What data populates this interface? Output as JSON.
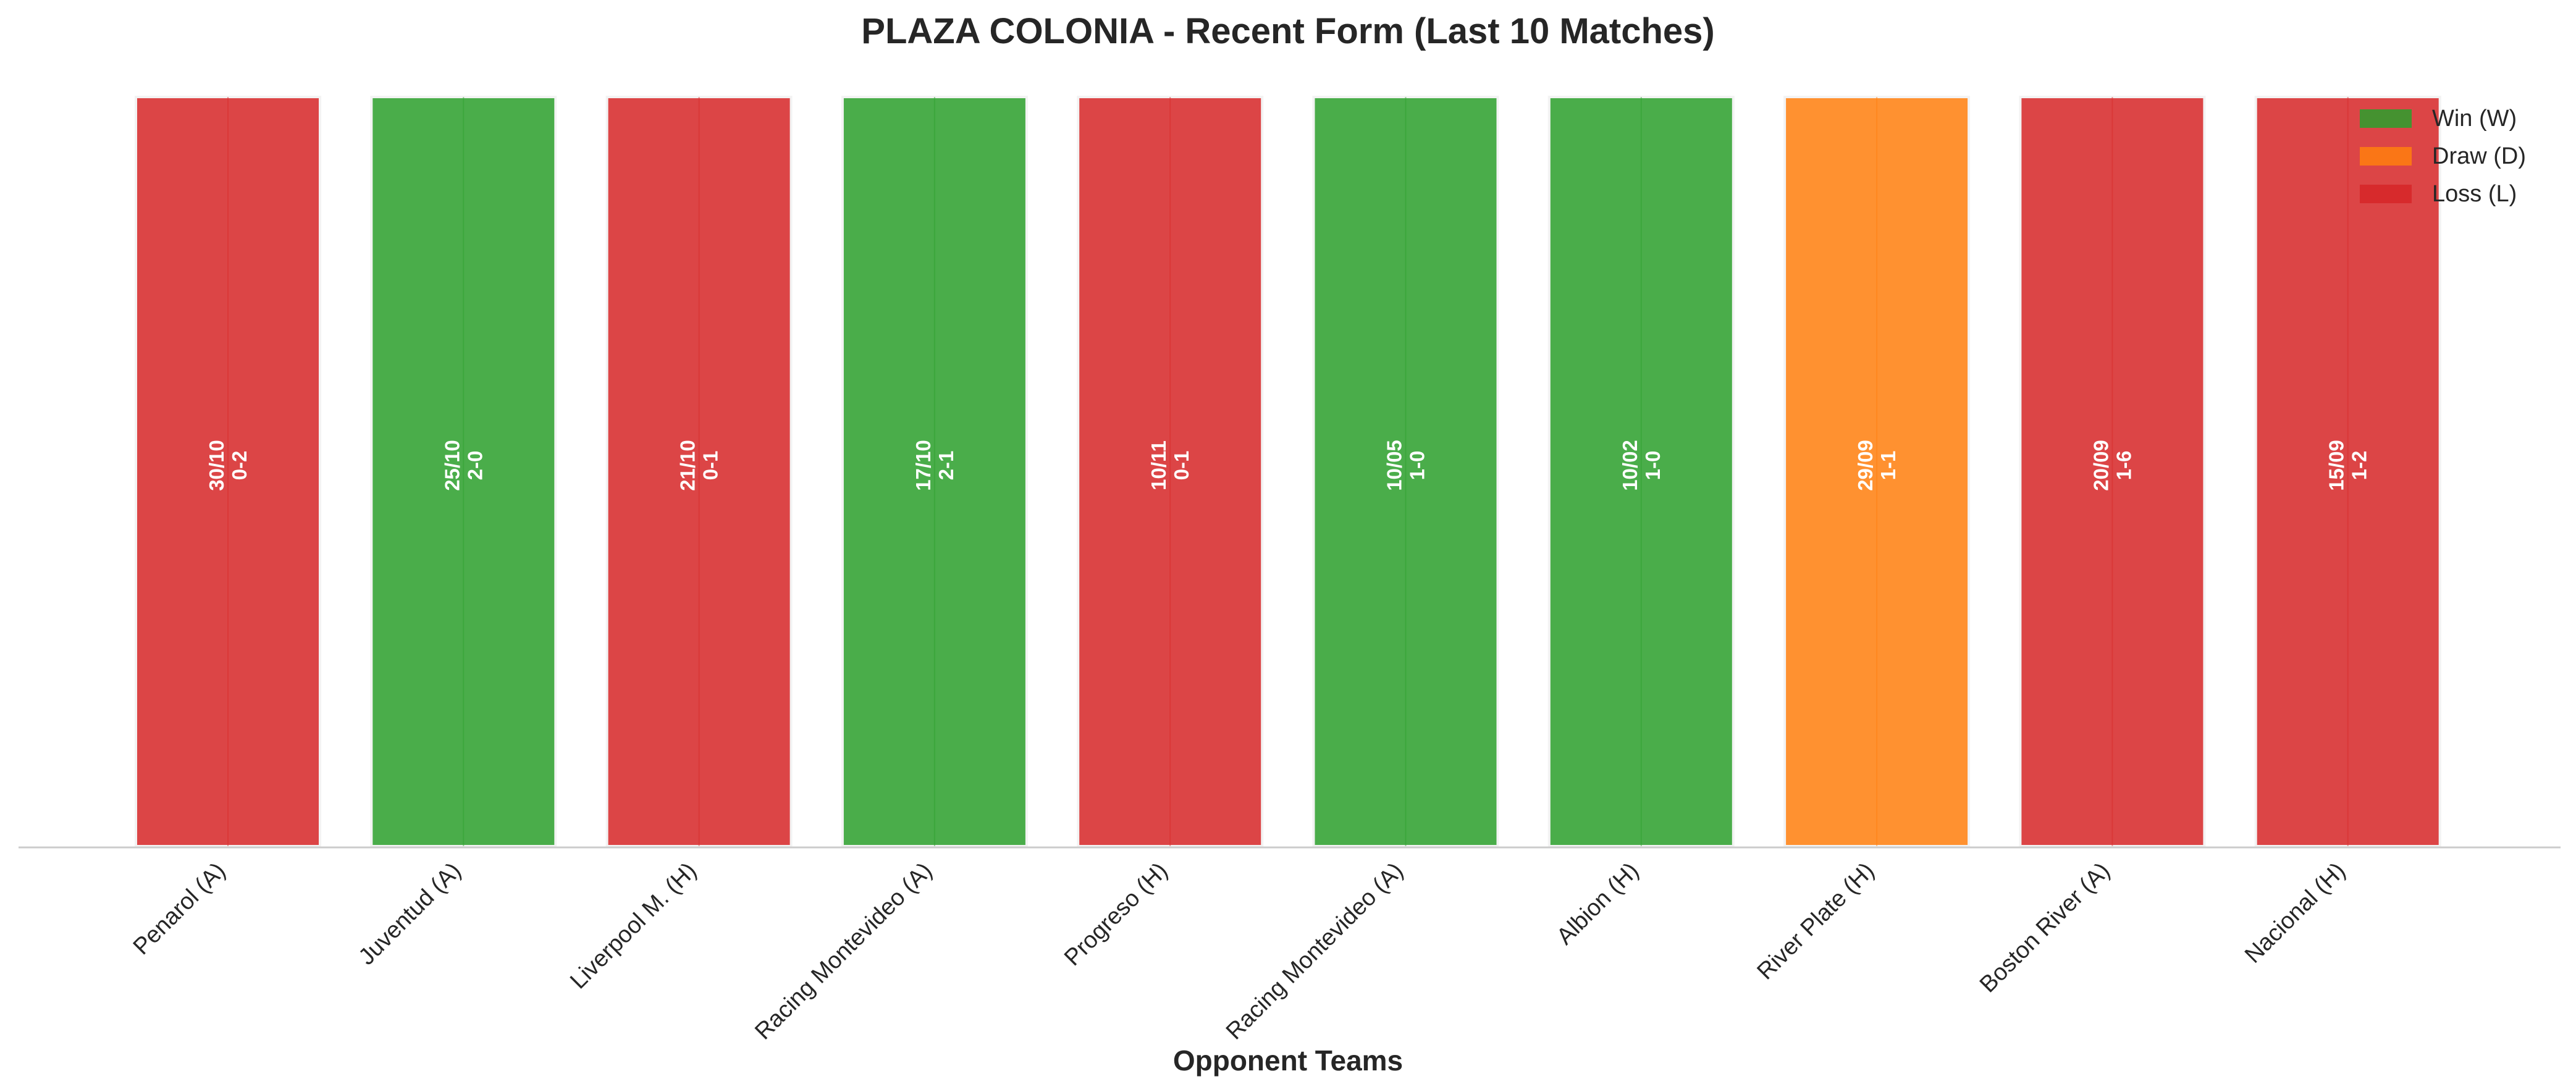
{
  "chart_data": {
    "type": "bar",
    "title": "PLAZA COLONIA - Recent Form (Last 10 Matches)",
    "xlabel": "Opponent Teams",
    "ylabel": "",
    "ylim": [
      0,
      1
    ],
    "grid": false,
    "legend_position": "top-right",
    "categories": [
      "Penarol (A)",
      "Juventud (A)",
      "Liverpool M. (H)",
      "Racing Montevideo (A)",
      "Progreso (H)",
      "Racing Montevideo (A)",
      "Albion (H)",
      "River Plate (H)",
      "Boston River (A)",
      "Nacional (H)"
    ],
    "values": [
      1,
      1,
      1,
      1,
      1,
      1,
      1,
      1,
      1,
      1
    ],
    "results": [
      "L",
      "W",
      "L",
      "W",
      "L",
      "W",
      "W",
      "D",
      "L",
      "L"
    ],
    "dates": [
      "30/10",
      "25/10",
      "21/10",
      "17/10",
      "10/11",
      "10/05",
      "10/02",
      "29/09",
      "20/09",
      "15/09"
    ],
    "scores": [
      "0-2",
      "2-0",
      "0-1",
      "2-1",
      "0-1",
      "1-0",
      "1-0",
      "1-1",
      "1-6",
      "1-2"
    ],
    "colors": {
      "W": "#2ca02c",
      "D": "#ff7f0e",
      "L": "#d62728"
    },
    "legend": [
      {
        "key": "W",
        "label": "Win (W)"
      },
      {
        "key": "D",
        "label": "Draw (D)"
      },
      {
        "key": "L",
        "label": "Loss (L)"
      }
    ]
  }
}
